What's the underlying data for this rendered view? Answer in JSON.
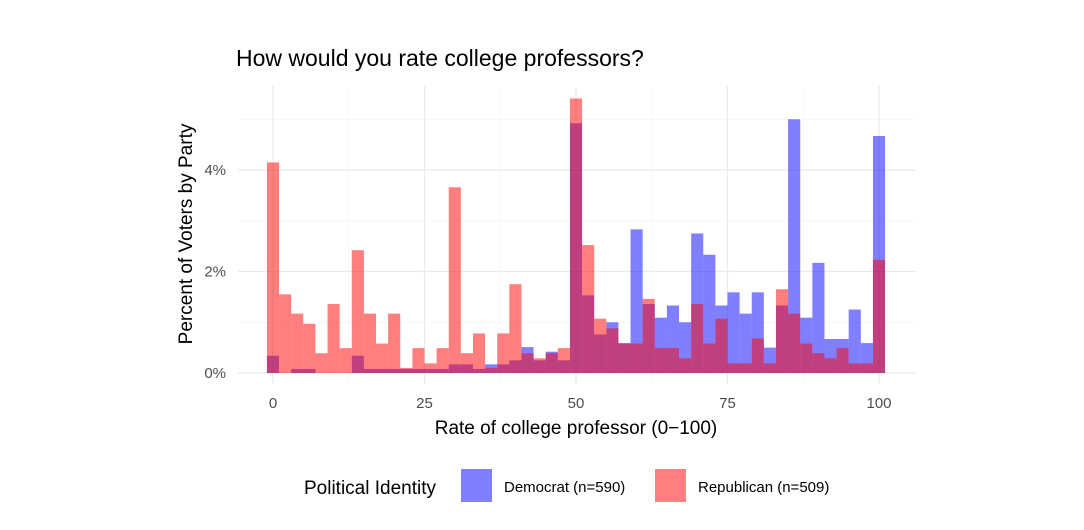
{
  "chart_data": {
    "type": "bar",
    "title": "How would you rate college professors?",
    "xlabel": "Rate of college professor (0−100)",
    "ylabel": "Percent of Voters by Party",
    "xlim": [
      -2.5,
      106.5
    ],
    "ylim": [
      0,
      5.6
    ],
    "x_ticks": [
      0,
      25,
      50,
      75,
      100
    ],
    "x_tick_labels": [
      "0",
      "25",
      "50",
      "75",
      "100"
    ],
    "y_ticks": [
      0,
      2,
      4
    ],
    "y_tick_labels": [
      "0%",
      "2%",
      "4%"
    ],
    "bin_width": 2,
    "bins_start": [
      -1,
      1,
      3,
      5,
      7,
      9,
      11,
      13,
      15,
      17,
      19,
      21,
      23,
      25,
      27,
      29,
      31,
      33,
      35,
      37,
      39,
      41,
      43,
      45,
      47,
      49,
      51,
      53,
      55,
      57,
      59,
      61,
      63,
      65,
      67,
      69,
      71,
      73,
      75,
      77,
      79,
      81,
      83,
      85,
      87,
      89,
      91,
      93,
      95,
      97,
      99
    ],
    "grid": true,
    "legend_position": "bottom",
    "legend_title": "Political Identity",
    "series": [
      {
        "name": "Democrat (n=590)",
        "color": "#0000FF",
        "opacity": 0.5,
        "values": [
          0.34,
          0.0,
          0.08,
          0.08,
          0.0,
          0.0,
          0.0,
          0.34,
          0.08,
          0.08,
          0.08,
          0.08,
          0.08,
          0.08,
          0.08,
          0.17,
          0.17,
          0.08,
          0.17,
          0.17,
          0.25,
          0.51,
          0.25,
          0.42,
          0.25,
          4.92,
          1.53,
          0.76,
          1.0,
          0.59,
          2.83,
          1.36,
          1.09,
          1.33,
          1.0,
          2.75,
          2.33,
          1.33,
          1.59,
          1.17,
          1.59,
          0.5,
          1.33,
          5.0,
          1.09,
          2.17,
          0.67,
          0.67,
          1.25,
          0.59,
          4.67
        ]
      },
      {
        "name": "Republican (n=509)",
        "color": "#FF0000",
        "opacity": 0.5,
        "values": [
          4.15,
          1.55,
          1.17,
          0.97,
          0.39,
          1.36,
          0.49,
          2.42,
          1.17,
          0.58,
          1.17,
          0.1,
          0.49,
          0.19,
          0.49,
          3.66,
          0.39,
          0.78,
          0.1,
          0.78,
          1.75,
          0.39,
          0.29,
          0.39,
          0.49,
          5.41,
          2.52,
          1.07,
          0.88,
          0.58,
          0.58,
          1.46,
          0.49,
          0.49,
          0.29,
          1.36,
          0.58,
          1.07,
          0.19,
          0.19,
          0.68,
          0.19,
          1.65,
          1.17,
          0.58,
          0.39,
          0.29,
          0.49,
          0.19,
          0.19,
          2.23
        ]
      }
    ]
  }
}
